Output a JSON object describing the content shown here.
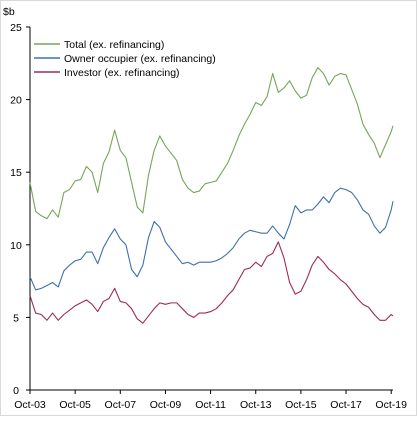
{
  "chart_data": {
    "type": "line",
    "title": "",
    "xlabel": "",
    "ylabel": "$b",
    "ylim": [
      0,
      25
    ],
    "xlim": [
      2003.75,
      2019.83
    ],
    "yticks": [
      0,
      5,
      10,
      15,
      20,
      25
    ],
    "xticks": [
      "Oct-03",
      "Oct-05",
      "Oct-07",
      "Oct-09",
      "Oct-11",
      "Oct-13",
      "Oct-15",
      "Oct-17",
      "Oct-19"
    ],
    "xtick_values": [
      2003.75,
      2005.75,
      2007.75,
      2009.75,
      2011.75,
      2013.75,
      2015.75,
      2017.75,
      2019.75
    ],
    "grid": false,
    "legend_position": "top-left",
    "series": [
      {
        "name": "Total (ex. refinancing)",
        "color": "#77A55A",
        "x": [
          2003.75,
          2004.0,
          2004.25,
          2004.5,
          2004.75,
          2005.0,
          2005.25,
          2005.5,
          2005.75,
          2006.0,
          2006.25,
          2006.5,
          2006.75,
          2007.0,
          2007.25,
          2007.5,
          2007.75,
          2008.0,
          2008.25,
          2008.5,
          2008.75,
          2009.0,
          2009.25,
          2009.5,
          2009.75,
          2010.0,
          2010.25,
          2010.5,
          2010.75,
          2011.0,
          2011.25,
          2011.5,
          2011.75,
          2012.0,
          2012.25,
          2012.5,
          2012.75,
          2013.0,
          2013.25,
          2013.5,
          2013.75,
          2014.0,
          2014.25,
          2014.5,
          2014.75,
          2015.0,
          2015.25,
          2015.5,
          2015.75,
          2016.0,
          2016.25,
          2016.5,
          2016.75,
          2017.0,
          2017.25,
          2017.5,
          2017.75,
          2018.0,
          2018.25,
          2018.5,
          2018.75,
          2019.0,
          2019.25,
          2019.5,
          2019.75,
          2019.83
        ],
        "values": [
          14.3,
          12.3,
          12.0,
          11.8,
          12.4,
          11.9,
          13.6,
          13.8,
          14.4,
          14.5,
          15.4,
          15.0,
          13.6,
          15.6,
          16.4,
          17.9,
          16.5,
          16.0,
          14.3,
          12.6,
          12.2,
          14.8,
          16.5,
          17.5,
          16.8,
          16.3,
          15.8,
          14.5,
          13.9,
          13.6,
          13.7,
          14.2,
          14.3,
          14.4,
          15.0,
          15.6,
          16.5,
          17.5,
          18.3,
          19.0,
          19.8,
          19.6,
          20.2,
          21.8,
          20.5,
          20.8,
          21.3,
          20.6,
          20.1,
          20.3,
          21.5,
          22.2,
          21.8,
          21.0,
          21.6,
          21.8,
          21.7,
          20.7,
          19.7,
          18.3,
          17.6,
          17.0,
          16.0,
          16.9,
          17.8,
          18.2
        ]
      },
      {
        "name": "Owner occupier (ex. refinancing)",
        "color": "#3F70AE",
        "x": [
          2003.75,
          2004.0,
          2004.25,
          2004.5,
          2004.75,
          2005.0,
          2005.25,
          2005.5,
          2005.75,
          2006.0,
          2006.25,
          2006.5,
          2006.75,
          2007.0,
          2007.25,
          2007.5,
          2007.75,
          2008.0,
          2008.25,
          2008.5,
          2008.75,
          2009.0,
          2009.25,
          2009.5,
          2009.75,
          2010.0,
          2010.25,
          2010.5,
          2010.75,
          2011.0,
          2011.25,
          2011.5,
          2011.75,
          2012.0,
          2012.25,
          2012.5,
          2012.75,
          2013.0,
          2013.25,
          2013.5,
          2013.75,
          2014.0,
          2014.25,
          2014.5,
          2014.75,
          2015.0,
          2015.25,
          2015.5,
          2015.75,
          2016.0,
          2016.25,
          2016.5,
          2016.75,
          2017.0,
          2017.25,
          2017.5,
          2017.75,
          2018.0,
          2018.25,
          2018.5,
          2018.75,
          2019.0,
          2019.25,
          2019.5,
          2019.75,
          2019.83
        ],
        "values": [
          7.8,
          6.9,
          7.0,
          7.2,
          7.4,
          7.1,
          8.2,
          8.6,
          8.9,
          9.0,
          9.5,
          9.5,
          8.7,
          9.8,
          10.5,
          11.1,
          10.4,
          10.0,
          8.3,
          7.8,
          8.6,
          10.5,
          11.6,
          11.2,
          10.2,
          9.7,
          9.2,
          8.7,
          8.8,
          8.6,
          8.8,
          8.8,
          8.8,
          8.9,
          9.1,
          9.4,
          9.8,
          10.4,
          10.8,
          11.0,
          10.9,
          10.8,
          10.8,
          11.3,
          10.8,
          10.4,
          11.4,
          12.7,
          12.2,
          12.4,
          12.4,
          12.8,
          13.3,
          12.9,
          13.6,
          13.9,
          13.8,
          13.6,
          13.1,
          12.4,
          12.1,
          11.3,
          10.8,
          11.2,
          12.4,
          13.0
        ]
      },
      {
        "name": "Investor (ex. refinancing)",
        "color": "#9D2C51",
        "x": [
          2003.75,
          2004.0,
          2004.25,
          2004.5,
          2004.75,
          2005.0,
          2005.25,
          2005.5,
          2005.75,
          2006.0,
          2006.25,
          2006.5,
          2006.75,
          2007.0,
          2007.25,
          2007.5,
          2007.75,
          2008.0,
          2008.25,
          2008.5,
          2008.75,
          2009.0,
          2009.25,
          2009.5,
          2009.75,
          2010.0,
          2010.25,
          2010.5,
          2010.75,
          2011.0,
          2011.25,
          2011.5,
          2011.75,
          2012.0,
          2012.25,
          2012.5,
          2012.75,
          2013.0,
          2013.25,
          2013.5,
          2013.75,
          2014.0,
          2014.25,
          2014.5,
          2014.75,
          2015.0,
          2015.25,
          2015.5,
          2015.75,
          2016.0,
          2016.25,
          2016.5,
          2016.75,
          2017.0,
          2017.25,
          2017.5,
          2017.75,
          2018.0,
          2018.25,
          2018.5,
          2018.75,
          2019.0,
          2019.25,
          2019.5,
          2019.75,
          2019.83
        ],
        "values": [
          6.5,
          5.3,
          5.2,
          4.8,
          5.3,
          4.8,
          5.2,
          5.5,
          5.8,
          6.0,
          6.2,
          5.9,
          5.4,
          6.1,
          6.3,
          7.0,
          6.1,
          6.0,
          5.6,
          4.9,
          4.6,
          5.1,
          5.6,
          6.0,
          5.9,
          6.0,
          6.0,
          5.6,
          5.2,
          5.0,
          5.3,
          5.3,
          5.4,
          5.6,
          6.0,
          6.5,
          6.9,
          7.6,
          8.3,
          8.4,
          8.8,
          8.5,
          9.2,
          9.4,
          10.2,
          9.1,
          7.4,
          6.6,
          6.8,
          7.6,
          8.6,
          9.2,
          8.8,
          8.3,
          8.0,
          7.6,
          7.3,
          6.8,
          6.3,
          5.9,
          5.7,
          5.2,
          4.8,
          4.8,
          5.2,
          5.1
        ]
      }
    ]
  }
}
